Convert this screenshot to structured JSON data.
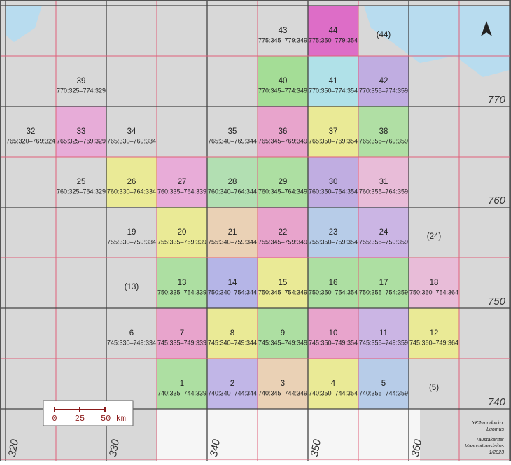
{
  "map": {
    "cells": [
      {
        "number": "43",
        "code": "775:345–779:349"
      },
      {
        "number": "44",
        "code": "775:350–779:354",
        "color": "#e040c0"
      },
      {
        "number": "(44)"
      },
      {
        "number": "39",
        "code": "770:325–774:329"
      },
      {
        "number": "40",
        "code": "770:345–774:349",
        "color": "#8ee07a"
      },
      {
        "number": "41",
        "code": "770:350–774:354",
        "color": "#9fe6ef"
      },
      {
        "number": "42",
        "code": "770:355–774:359",
        "color": "#b79be6"
      },
      {
        "number": "32",
        "code": "765:320–769:324"
      },
      {
        "number": "33",
        "code": "765:325–769:329",
        "color": "#ee9ad8"
      },
      {
        "number": "34",
        "code": "765:330–769:334"
      },
      {
        "number": "35",
        "code": "765:340–769:344"
      },
      {
        "number": "36",
        "code": "765:345–769:349",
        "color": "#ef8fc8"
      },
      {
        "number": "37",
        "code": "765:350–769:354",
        "color": "#f2f27a"
      },
      {
        "number": "38",
        "code": "765:355–769:359",
        "color": "#9fe38f"
      },
      {
        "number": "25",
        "code": "760:325–764:329"
      },
      {
        "number": "26",
        "code": "760:330–764:334",
        "color": "#f2f27a"
      },
      {
        "number": "27",
        "code": "760:335–764:339",
        "color": "#ef9ad8"
      },
      {
        "number": "28",
        "code": "760:340–764:344",
        "color": "#a3e3a3"
      },
      {
        "number": "29",
        "code": "760:345–764:349",
        "color": "#9be38c"
      },
      {
        "number": "30",
        "code": "760:350–764:354",
        "color": "#b79be6"
      },
      {
        "number": "31",
        "code": "760:355–764:359",
        "color": "#f0b0d8"
      },
      {
        "number": "19",
        "code": "755:330–759:334"
      },
      {
        "number": "20",
        "code": "755:335–759:339",
        "color": "#f2f27a"
      },
      {
        "number": "21",
        "code": "755:340–759:344",
        "color": "#f2cfa6"
      },
      {
        "number": "22",
        "code": "755:345–759:349",
        "color": "#ef8fc8"
      },
      {
        "number": "23",
        "code": "755:350–759:354",
        "color": "#a9c8ef"
      },
      {
        "number": "24",
        "code": "755:355–759:359",
        "color": "#c6a6ea"
      },
      {
        "number": "(24)"
      },
      {
        "number": "(13)"
      },
      {
        "number": "13",
        "code": "750:335–754:339",
        "color": "#9be38c"
      },
      {
        "number": "14",
        "code": "750:340–754:344",
        "color": "#a6a6ee"
      },
      {
        "number": "15",
        "code": "750:345–754:349",
        "color": "#f2f27a"
      },
      {
        "number": "16",
        "code": "750:350–754:354",
        "color": "#9be38c"
      },
      {
        "number": "17",
        "code": "750:355–754:359",
        "color": "#9be38c"
      },
      {
        "number": "18",
        "code": "750:360–754:364",
        "color": "#f0b0d8"
      },
      {
        "number": "6",
        "code": "745:330–749:334"
      },
      {
        "number": "7",
        "code": "745:335–749:339",
        "color": "#ef8fc8"
      },
      {
        "number": "8",
        "code": "745:340–749:344",
        "color": "#f2f27a"
      },
      {
        "number": "9",
        "code": "745:345–749:349",
        "color": "#9be38c"
      },
      {
        "number": "10",
        "code": "745:350–749:354",
        "color": "#ef8fc8"
      },
      {
        "number": "11",
        "code": "745:355–749:359",
        "color": "#c6a6ea"
      },
      {
        "number": "12",
        "code": "745:360–749:364",
        "color": "#f2f27a"
      },
      {
        "number": "1",
        "code": "740:335–744:339",
        "color": "#9be38c"
      },
      {
        "number": "2",
        "code": "740:340–744:344",
        "color": "#b8a8ee"
      },
      {
        "number": "3",
        "code": "740:345–744:349",
        "color": "#f2cfa6"
      },
      {
        "number": "4",
        "code": "740:350–744:354",
        "color": "#f2f27a"
      },
      {
        "number": "5",
        "code": "740:355–744:359",
        "color": "#a9c8ef"
      },
      {
        "number": "(5)"
      }
    ],
    "easting_labels": [
      "320",
      "330",
      "340",
      "350",
      "360"
    ],
    "northing_labels": [
      "770",
      "760",
      "750",
      "740"
    ],
    "scale_labels": [
      "0",
      "25",
      "50 km"
    ],
    "attribution": [
      "YKJ-ruudukko:",
      "Luomus",
      "Taustakartta:",
      "Maanmittauslaitos",
      "1/2023"
    ]
  }
}
